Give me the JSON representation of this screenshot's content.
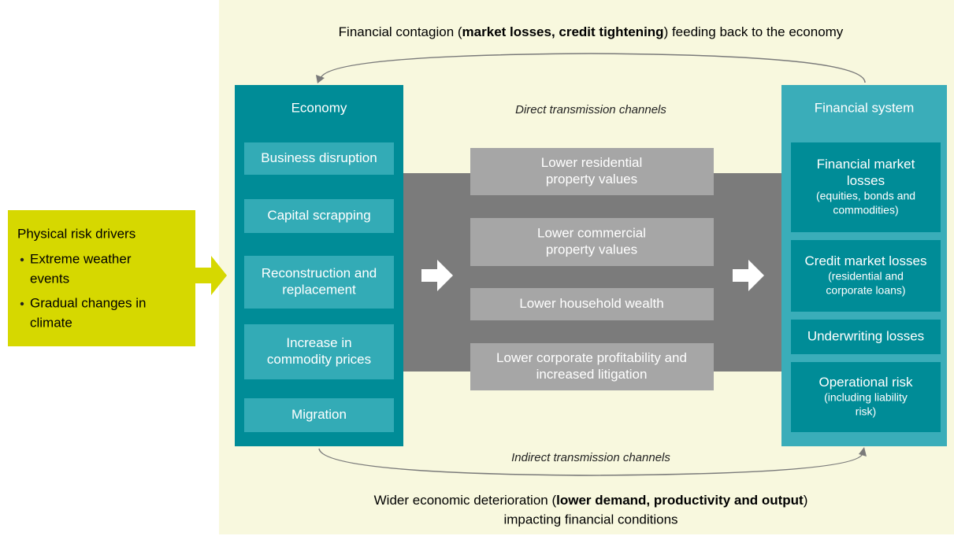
{
  "top_caption": [
    "Financial contagion (",
    "market losses, credit tightening",
    ") feeding back to the economy"
  ],
  "drivers": {
    "title": "Physical risk drivers",
    "items": [
      [
        "Extreme weather",
        "events"
      ],
      [
        "Gradual changes in",
        "climate"
      ]
    ]
  },
  "economy": {
    "title": "Economy",
    "items": [
      [
        "Business disruption"
      ],
      [
        "Capital scrapping"
      ],
      [
        "Reconstruction and",
        "replacement"
      ],
      [
        "Increase in",
        "commodity prices"
      ],
      [
        "Migration"
      ]
    ]
  },
  "direct_label": "Direct transmission channels",
  "channels": [
    [
      "Lower residential",
      "property values"
    ],
    [
      "Lower commercial",
      "property values"
    ],
    [
      "Lower household wealth"
    ],
    [
      "Lower corporate profitability and",
      "increased litigation"
    ]
  ],
  "financial_system": {
    "title": "Financial system",
    "items": [
      {
        "lines": [
          "Financial market",
          "losses"
        ],
        "note": [
          "(equities, bonds and",
          "commodities)"
        ]
      },
      {
        "lines": [
          "Credit market losses"
        ],
        "note": [
          "(residential and",
          "corporate loans)"
        ]
      },
      {
        "lines": [
          "Underwriting losses"
        ]
      },
      {
        "lines": [
          "Operational risk"
        ],
        "note": [
          "(including liability",
          "risk)"
        ]
      }
    ]
  },
  "indirect_label": "Indirect transmission channels",
  "bottom_caption": [
    [
      "Wider economic deterioration (",
      "lower demand, productivity and output",
      ")"
    ],
    [
      "impacting financial conditions"
    ]
  ]
}
